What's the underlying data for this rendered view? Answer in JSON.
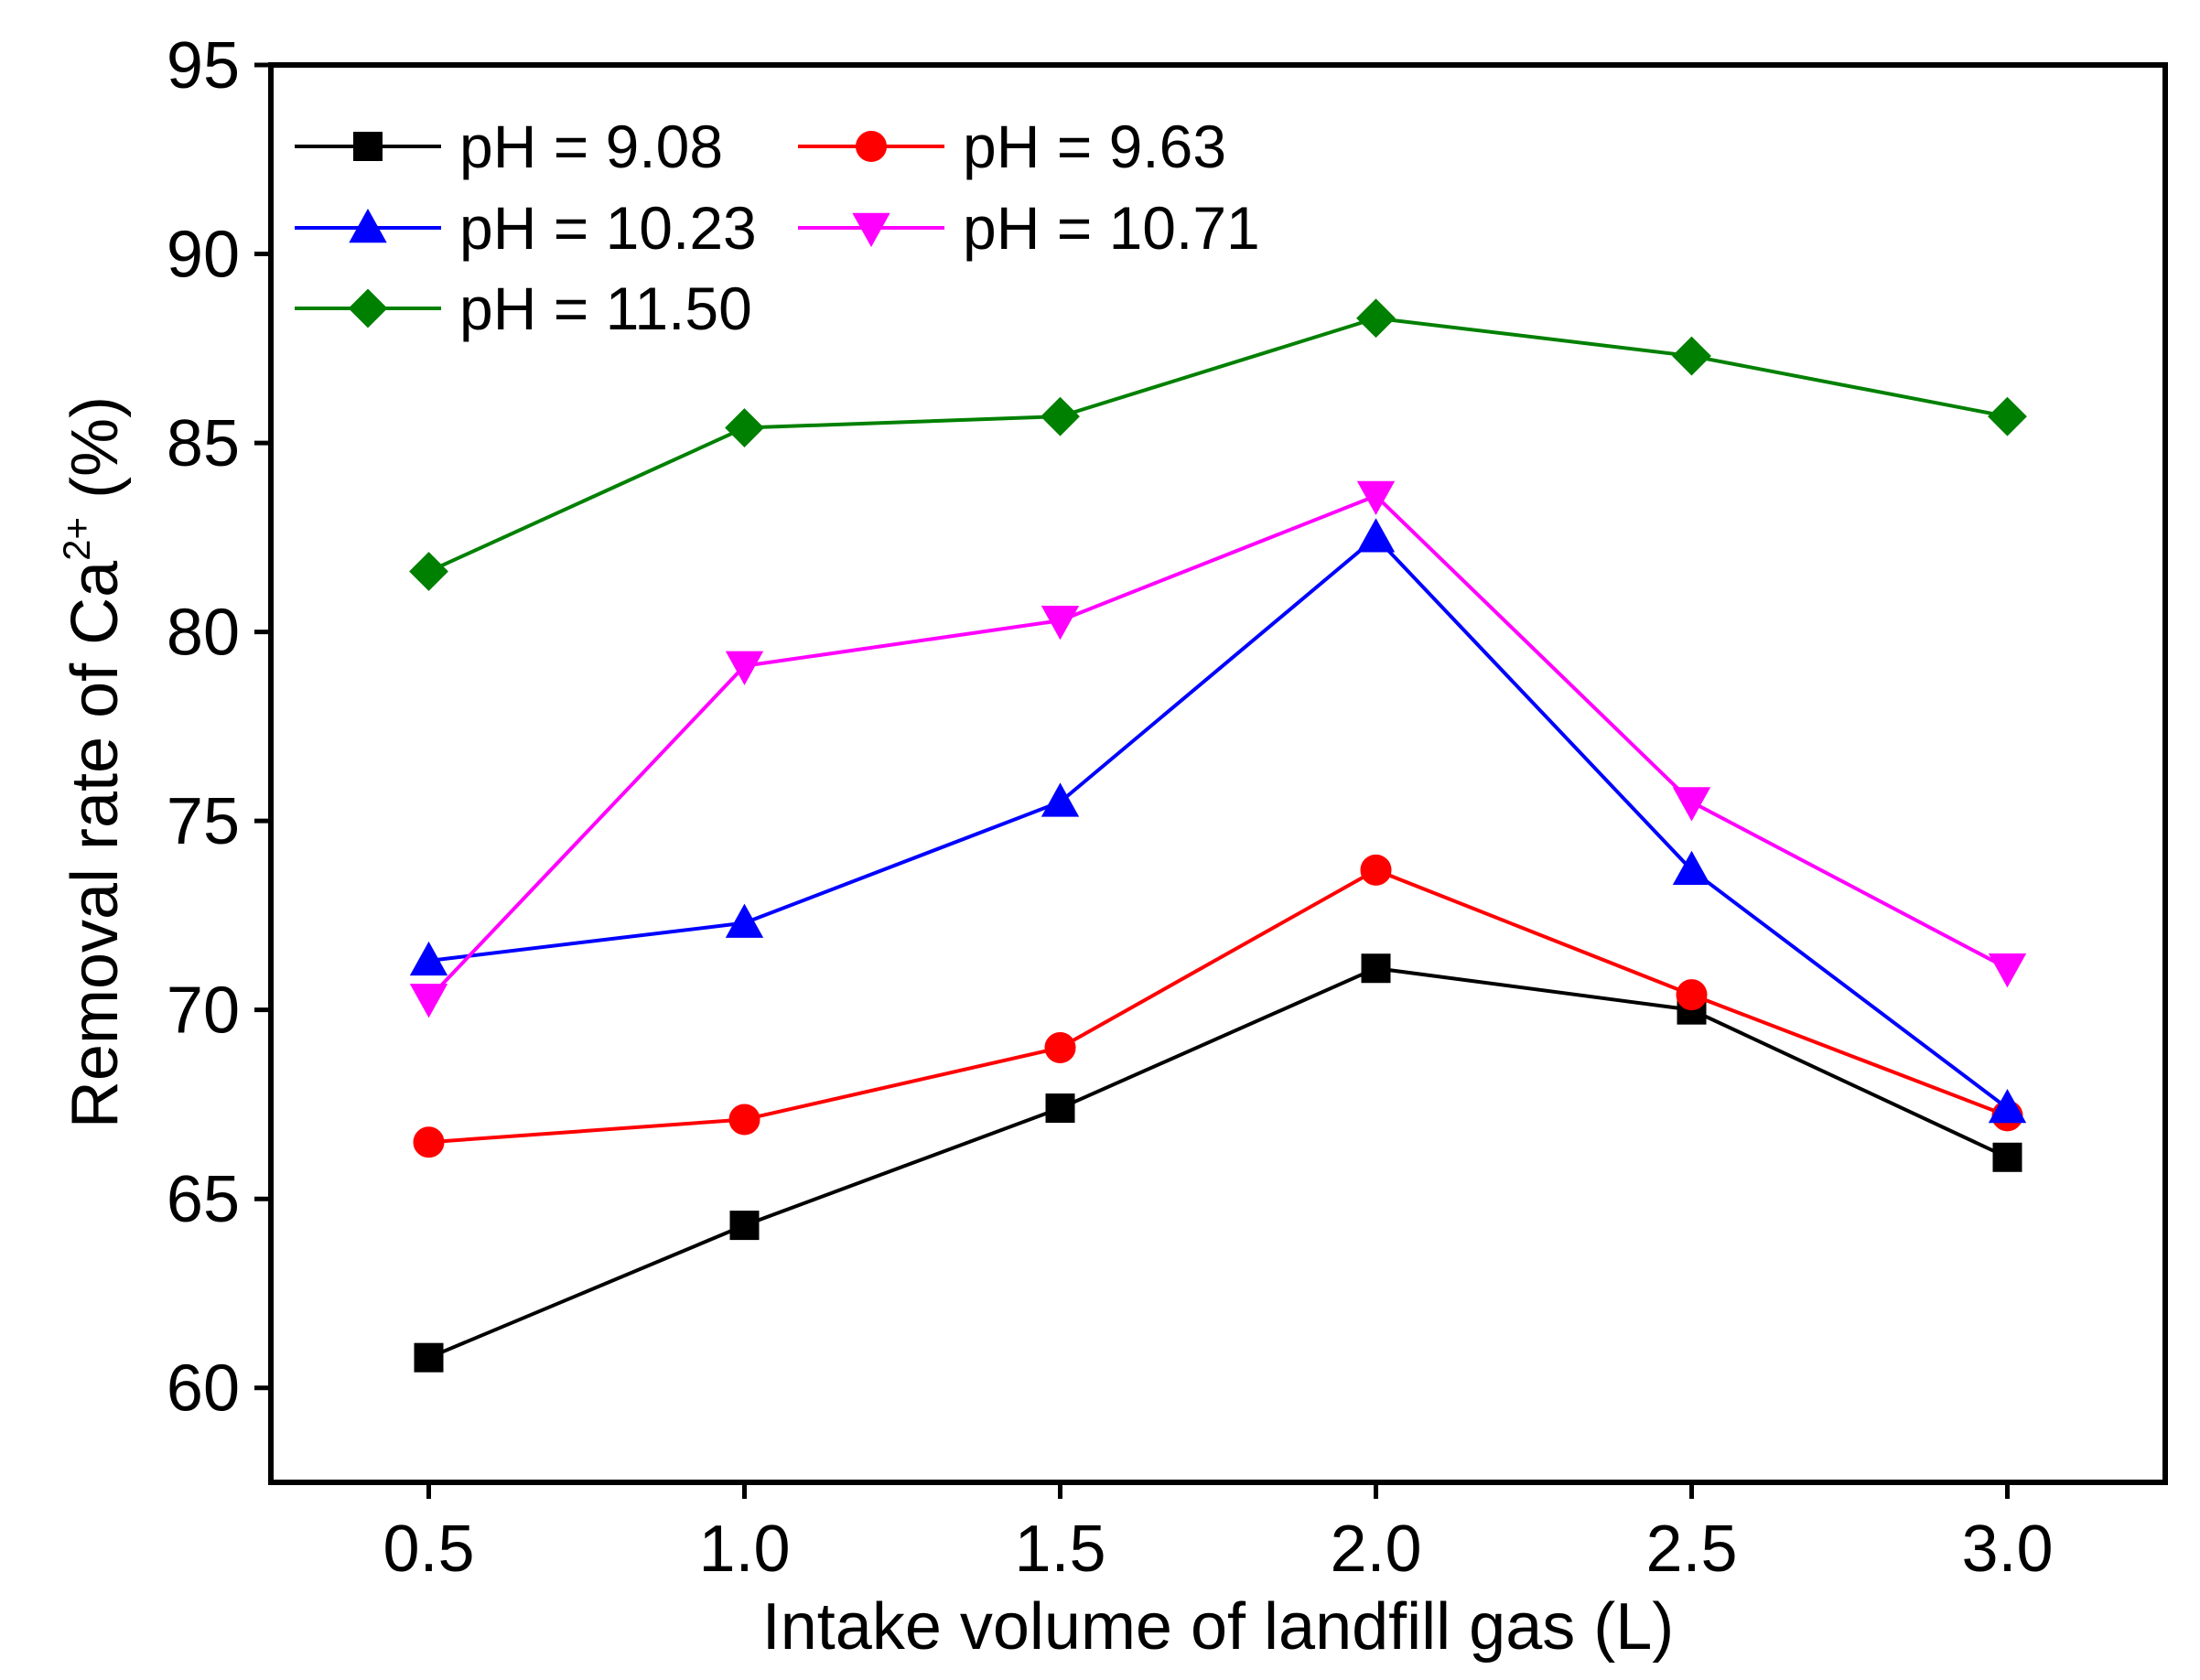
{
  "chart_data": {
    "type": "line",
    "xlabel": "Intake volume of landfill gas (L)",
    "ylabel_prefix": "Removal rate of Ca",
    "ylabel_superscript": "2+",
    "ylabel_suffix": " (%)",
    "x": [
      0.5,
      1.0,
      1.5,
      2.0,
      2.5,
      3.0
    ],
    "x_tick_labels": [
      "0.5",
      "1.0",
      "1.5",
      "2.0",
      "2.5",
      "3.0"
    ],
    "xlim": [
      0.25,
      3.25
    ],
    "ylim": [
      57.5,
      95
    ],
    "y_ticks": [
      60,
      65,
      70,
      75,
      80,
      85,
      90,
      95
    ],
    "y_tick_labels": [
      "60",
      "65",
      "70",
      "75",
      "80",
      "85",
      "90",
      "95"
    ],
    "grid": false,
    "legend_position": "top-left",
    "series": [
      {
        "name": "pH = 9.08",
        "color": "#000000",
        "marker": "square",
        "values": [
          60.8,
          64.3,
          67.4,
          71.1,
          70.0,
          66.1
        ]
      },
      {
        "name": "pH = 9.63",
        "color": "#ff0000",
        "marker": "circle",
        "values": [
          66.5,
          67.1,
          69.0,
          73.7,
          70.4,
          67.2
        ]
      },
      {
        "name": "pH = 10.23",
        "color": "#0000ff",
        "marker": "triangle-up",
        "values": [
          71.3,
          72.3,
          75.5,
          82.5,
          73.7,
          67.4
        ]
      },
      {
        "name": "pH = 10.71",
        "color": "#ff00ff",
        "marker": "triangle-down",
        "values": [
          70.3,
          79.1,
          80.3,
          83.6,
          75.5,
          71.1
        ]
      },
      {
        "name": "pH = 11.50",
        "color": "#008000",
        "marker": "diamond",
        "values": [
          81.6,
          85.4,
          85.7,
          88.3,
          87.3,
          85.7
        ]
      }
    ]
  }
}
